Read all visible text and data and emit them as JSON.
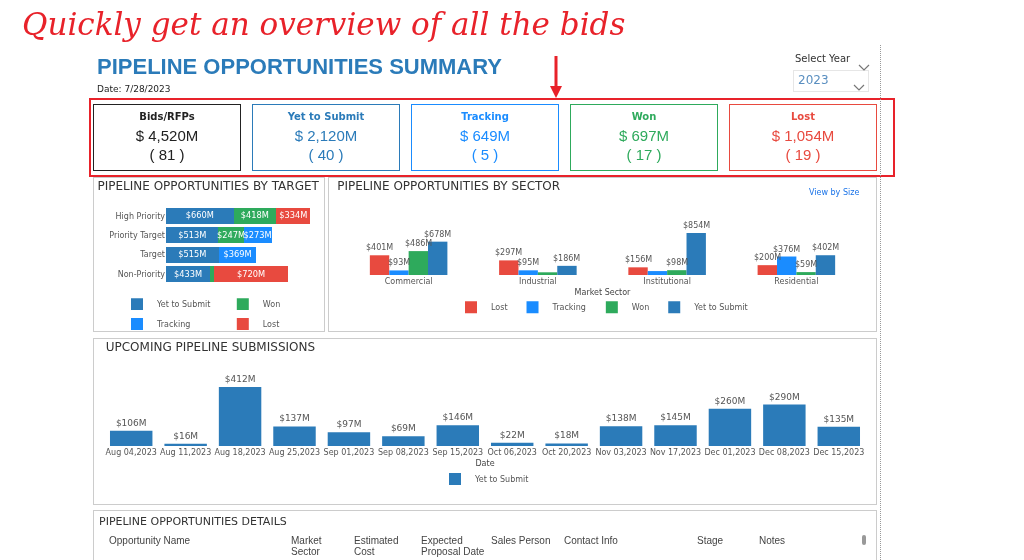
{
  "chart_data": [
    {
      "type": "other",
      "title": "PIPELINE OPPORTUNITIES SUMMARY",
      "annotations": [
        "Quickly get an overview of all the bids",
        "Date: 7/28/2023",
        "Select Year",
        "2023"
      ],
      "categories": [
        "Bids/RFPs",
        "Yet to Submit",
        "Tracking",
        "Won",
        "Lost"
      ],
      "value_labels": [
        "$ 4,520M\n( 81 )",
        "$ 2,120M\n( 40 )",
        "$ 649M\n( 5 )",
        "$ 697M\n( 17 )",
        "$ 1,054M\n( 19 )"
      ],
      "colors": [
        "#222222",
        "#2b7bb9",
        "#1a8cff",
        "#2eaa5c",
        "#e84a3f"
      ]
    },
    {
      "type": "bar",
      "title": "PIPELINE OPPORTUNITIES BY TARGET",
      "orientation": "horizontal",
      "stacked": true,
      "tick_labels": "y",
      "legend": "bottom",
      "categories": [
        "High Priority",
        "Priority Target",
        "Target",
        "Non-Priority"
      ],
      "series": [
        {
          "name": "Yet to Submit",
          "color": "#2b7bb9",
          "values": [
            660,
            513,
            515,
            433
          ],
          "value_labels": [
            "$660M",
            "$513M",
            "$515M",
            "$433M"
          ]
        },
        {
          "name": "Won",
          "color": "#2eaa5c",
          "values": [
            418,
            247,
            null,
            40
          ],
          "value_labels": [
            "$418M",
            "$247M",
            null,
            null
          ]
        },
        {
          "name": "Tracking",
          "color": "#1a8cff",
          "values": [
            null,
            273,
            369,
            null
          ],
          "value_labels": [
            null,
            "$273M",
            "$369M",
            null
          ]
        },
        {
          "name": "Lost",
          "color": "#e84a3f",
          "values": [
            334,
            null,
            null,
            720
          ],
          "value_labels": [
            "$334M",
            null,
            null,
            "$720M"
          ]
        }
      ]
    },
    {
      "type": "bar",
      "title": "PIPELINE OPPORTUNITIES BY SECTOR",
      "xlabel": "Market Sector",
      "annotations": [
        "View by Size"
      ],
      "tick_labels": "x",
      "legend": "bottom",
      "categories": [
        "Commercial",
        "Industrial",
        "Institutional",
        "Residential"
      ],
      "series": [
        {
          "name": "Lost",
          "color": "#e84a3f",
          "values": [
            401,
            297,
            156,
            200
          ],
          "value_labels": [
            "$401M",
            "$297M",
            "$156M",
            "$200M"
          ]
        },
        {
          "name": "Tracking",
          "color": "#1a8cff",
          "values": [
            93,
            95,
            80,
            376
          ],
          "value_labels": [
            "$93M",
            "$95M",
            null,
            "$376M"
          ]
        },
        {
          "name": "Won",
          "color": "#2eaa5c",
          "values": [
            486,
            55,
            98,
            59
          ],
          "value_labels": [
            "$486M",
            null,
            "$98M",
            "$59M"
          ]
        },
        {
          "name": "Yet to Submit",
          "color": "#2b7bb9",
          "values": [
            678,
            186,
            854,
            402
          ],
          "value_labels": [
            "$678M",
            "$186M",
            "$854M",
            "$402M"
          ]
        }
      ]
    },
    {
      "type": "bar",
      "title": "UPCOMING PIPELINE SUBMISSIONS",
      "xlabel": "Date",
      "tick_labels": "x",
      "legend": "bottom",
      "categories": [
        "Aug 04,2023",
        "Aug 11,2023",
        "Aug 18,2023",
        "Aug 25,2023",
        "Sep 01,2023",
        "Sep 08,2023",
        "Sep 15,2023",
        "Oct 06,2023",
        "Oct 20,2023",
        "Nov 03,2023",
        "Nov 17,2023",
        "Dec 01,2023",
        "Dec 08,2023",
        "Dec 15,2023"
      ],
      "series": [
        {
          "name": "Yet to Submit",
          "color": "#2b7bb9",
          "values": [
            106,
            16,
            412,
            137,
            97,
            69,
            146,
            22,
            18,
            138,
            145,
            260,
            290,
            135
          ],
          "value_labels": [
            "$106M",
            "$16M",
            "$412M",
            "$137M",
            "$97M",
            "$69M",
            "$146M",
            "$22M",
            "$18M",
            "$138M",
            "$145M",
            "$260M",
            "$290M",
            "$135M"
          ]
        }
      ]
    },
    {
      "type": "other",
      "title": "PIPELINE OPPORTUNITIES DETAILS",
      "categories": [
        "Opportunity Name",
        "Market\nSector",
        "Estimated\nCost",
        "Expected\nProposal Date",
        "Sales Person",
        "Contact Info",
        "Stage",
        "Notes"
      ]
    }
  ]
}
